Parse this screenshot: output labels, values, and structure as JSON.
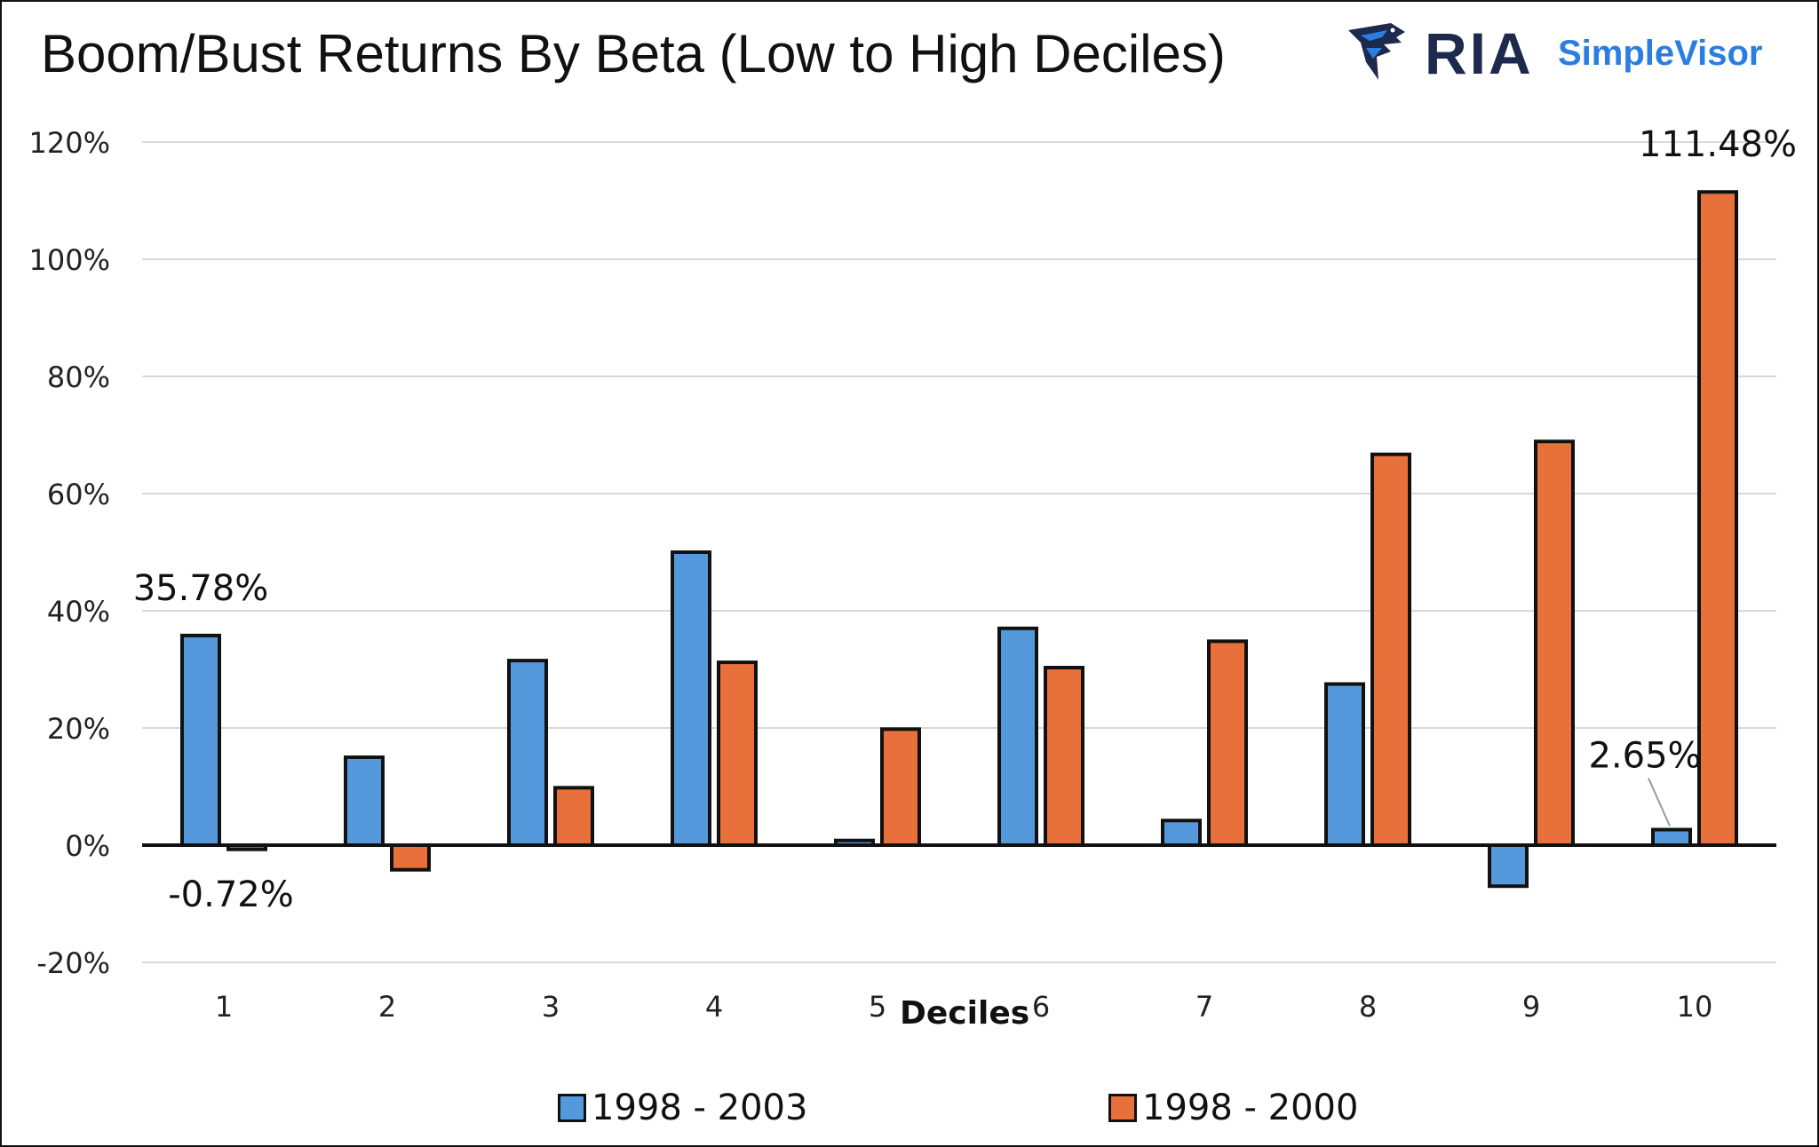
{
  "header": {
    "title": "Boom/Bust Returns By Beta (Low to High Deciles)",
    "logo": {
      "brand": "RIA",
      "product": "SimpleVisor"
    }
  },
  "colors": {
    "series_a": "#5599dd",
    "series_b": "#e8703a",
    "brand_dark": "#1d2a4d",
    "brand_blue": "#2a7de1"
  },
  "chart_data": {
    "type": "bar",
    "title": "Boom/Bust Returns By Beta (Low to High Deciles)",
    "xlabel": "Deciles",
    "ylabel": "",
    "categories": [
      "1",
      "2",
      "3",
      "4",
      "5",
      "6",
      "7",
      "8",
      "9",
      "10"
    ],
    "series": [
      {
        "name": "1998 - 2003",
        "color": "#5599dd",
        "values": [
          35.78,
          15.0,
          31.5,
          50.0,
          0.8,
          37.0,
          4.2,
          27.5,
          -7.0,
          2.65
        ]
      },
      {
        "name": "1998 - 2000",
        "color": "#e8703a",
        "values": [
          -0.72,
          -4.2,
          9.8,
          31.2,
          19.8,
          30.3,
          34.8,
          66.7,
          68.9,
          111.48
        ]
      }
    ],
    "ylim": [
      -20,
      120
    ],
    "yticks": [
      -20,
      0,
      20,
      40,
      60,
      80,
      100,
      120
    ],
    "ytick_labels": [
      "-20%",
      "0%",
      "20%",
      "40%",
      "60%",
      "80%",
      "100%",
      "120%"
    ],
    "grid": true,
    "legend_position": "bottom",
    "annotations": [
      {
        "text": "35.78%",
        "series": 0,
        "category": "1"
      },
      {
        "text": "-0.72%",
        "series": 1,
        "category": "1"
      },
      {
        "text": "2.65%",
        "series": 0,
        "category": "10"
      },
      {
        "text": "111.48%",
        "series": 1,
        "category": "10"
      }
    ]
  }
}
